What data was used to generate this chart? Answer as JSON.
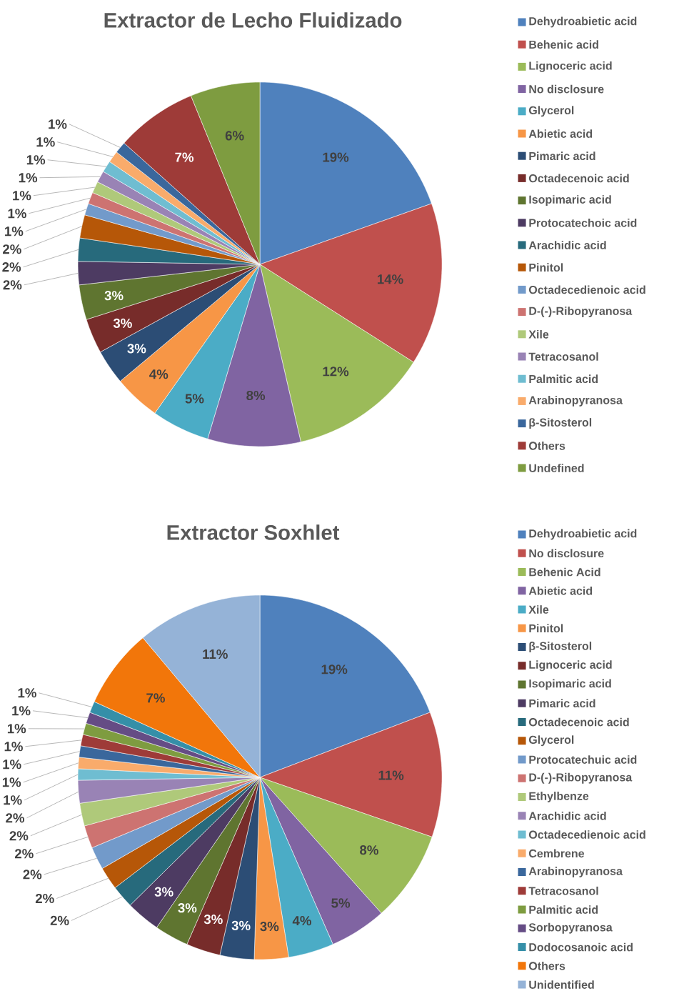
{
  "chart_data": [
    {
      "type": "pie",
      "title": "Extractor de Lecho Fluidizado",
      "legend": "right",
      "categories": [
        "Dehydroabietic acid",
        "Behenic acid",
        "Lignoceric acid",
        "No disclosure",
        "Glycerol",
        "Abietic acid",
        "Pimaric acid",
        "Octadecenoic acid",
        "Isopimaric acid",
        "Protocatechoic acid",
        "Arachidic acid",
        "Pinitol",
        "Octadecedienoic acid",
        "D-(-)-Ribopyranosa",
        "Xile",
        "Tetracosanol",
        "Palmitic acid",
        "Arabinopyranosa",
        "β-Sitosterol",
        "Others",
        "Undefined"
      ],
      "values": [
        19,
        14,
        12,
        8,
        5,
        4,
        3,
        3,
        3,
        2,
        2,
        2,
        1,
        1,
        1,
        1,
        1,
        1,
        1,
        7,
        6
      ],
      "value_labels": [
        "19%",
        "14%",
        "12%",
        "8%",
        "5%",
        "4%",
        "3%",
        "3%",
        "3%",
        "2%",
        "2%",
        "2%",
        "1%",
        "1%",
        "1%",
        "1%",
        "1%",
        "1%",
        "1%",
        "7%",
        "6%"
      ],
      "colors": [
        "#4f81bd",
        "#c0504d",
        "#9bbb59",
        "#8064a2",
        "#4bacc6",
        "#f79646",
        "#2c4d75",
        "#772c2a",
        "#5f7530",
        "#4d3b62",
        "#276a7c",
        "#b65708",
        "#729aca",
        "#cd7371",
        "#afc97a",
        "#9983b5",
        "#6fbdd1",
        "#f9ab6b",
        "#3a679c",
        "#9e3b38",
        "#7e9c40"
      ]
    },
    {
      "type": "pie",
      "title": "Extractor Soxhlet",
      "legend": "right",
      "categories": [
        "Dehydroabietic acid",
        "No disclosure",
        "Behenic Acid",
        "Abietic acid",
        "Xile",
        "Pinitol",
        "β-Sitosterol",
        "Lignoceric acid",
        "Isopimaric acid",
        "Pimaric acid",
        "Octadecenoic acid",
        "Glycerol",
        "Protocatechuic acid",
        "D-(-)-Ribopyranosa",
        "Ethylbenze",
        "Arachidic acid",
        "Octadecedienoic acid",
        "Cembrene",
        "Arabinopyranosa",
        "Tetracosanol",
        "Palmitic acid",
        "Sorbopyranosa",
        "Dodocosanoic acid",
        "Others",
        "Unidentified"
      ],
      "values": [
        19,
        11,
        8,
        5,
        4,
        3,
        3,
        3,
        3,
        3,
        2,
        2,
        2,
        2,
        2,
        2,
        1,
        1,
        1,
        1,
        1,
        1,
        1,
        7,
        11
      ],
      "value_labels": [
        "19%",
        "11%",
        "8%",
        "5%",
        "4%",
        "3%",
        "3%",
        "3%",
        "3%",
        "3%",
        "2%",
        "2%",
        "2%",
        "2%",
        "2%",
        "2%",
        "1%",
        "1%",
        "1%",
        "1%",
        "1%",
        "1%",
        "1%",
        "7%",
        "11%"
      ],
      "colors": [
        "#4f81bd",
        "#c0504d",
        "#9bbb59",
        "#8064a2",
        "#4bacc6",
        "#f79646",
        "#2c4d75",
        "#772c2a",
        "#5f7530",
        "#4d3b62",
        "#276a7c",
        "#b65708",
        "#729aca",
        "#cd7371",
        "#afc97a",
        "#9983b5",
        "#6fbdd1",
        "#f9ab6b",
        "#3a679c",
        "#9e3b38",
        "#7e9c40",
        "#654c85",
        "#358fa8",
        "#f2760a",
        "#95b3d7"
      ]
    }
  ]
}
